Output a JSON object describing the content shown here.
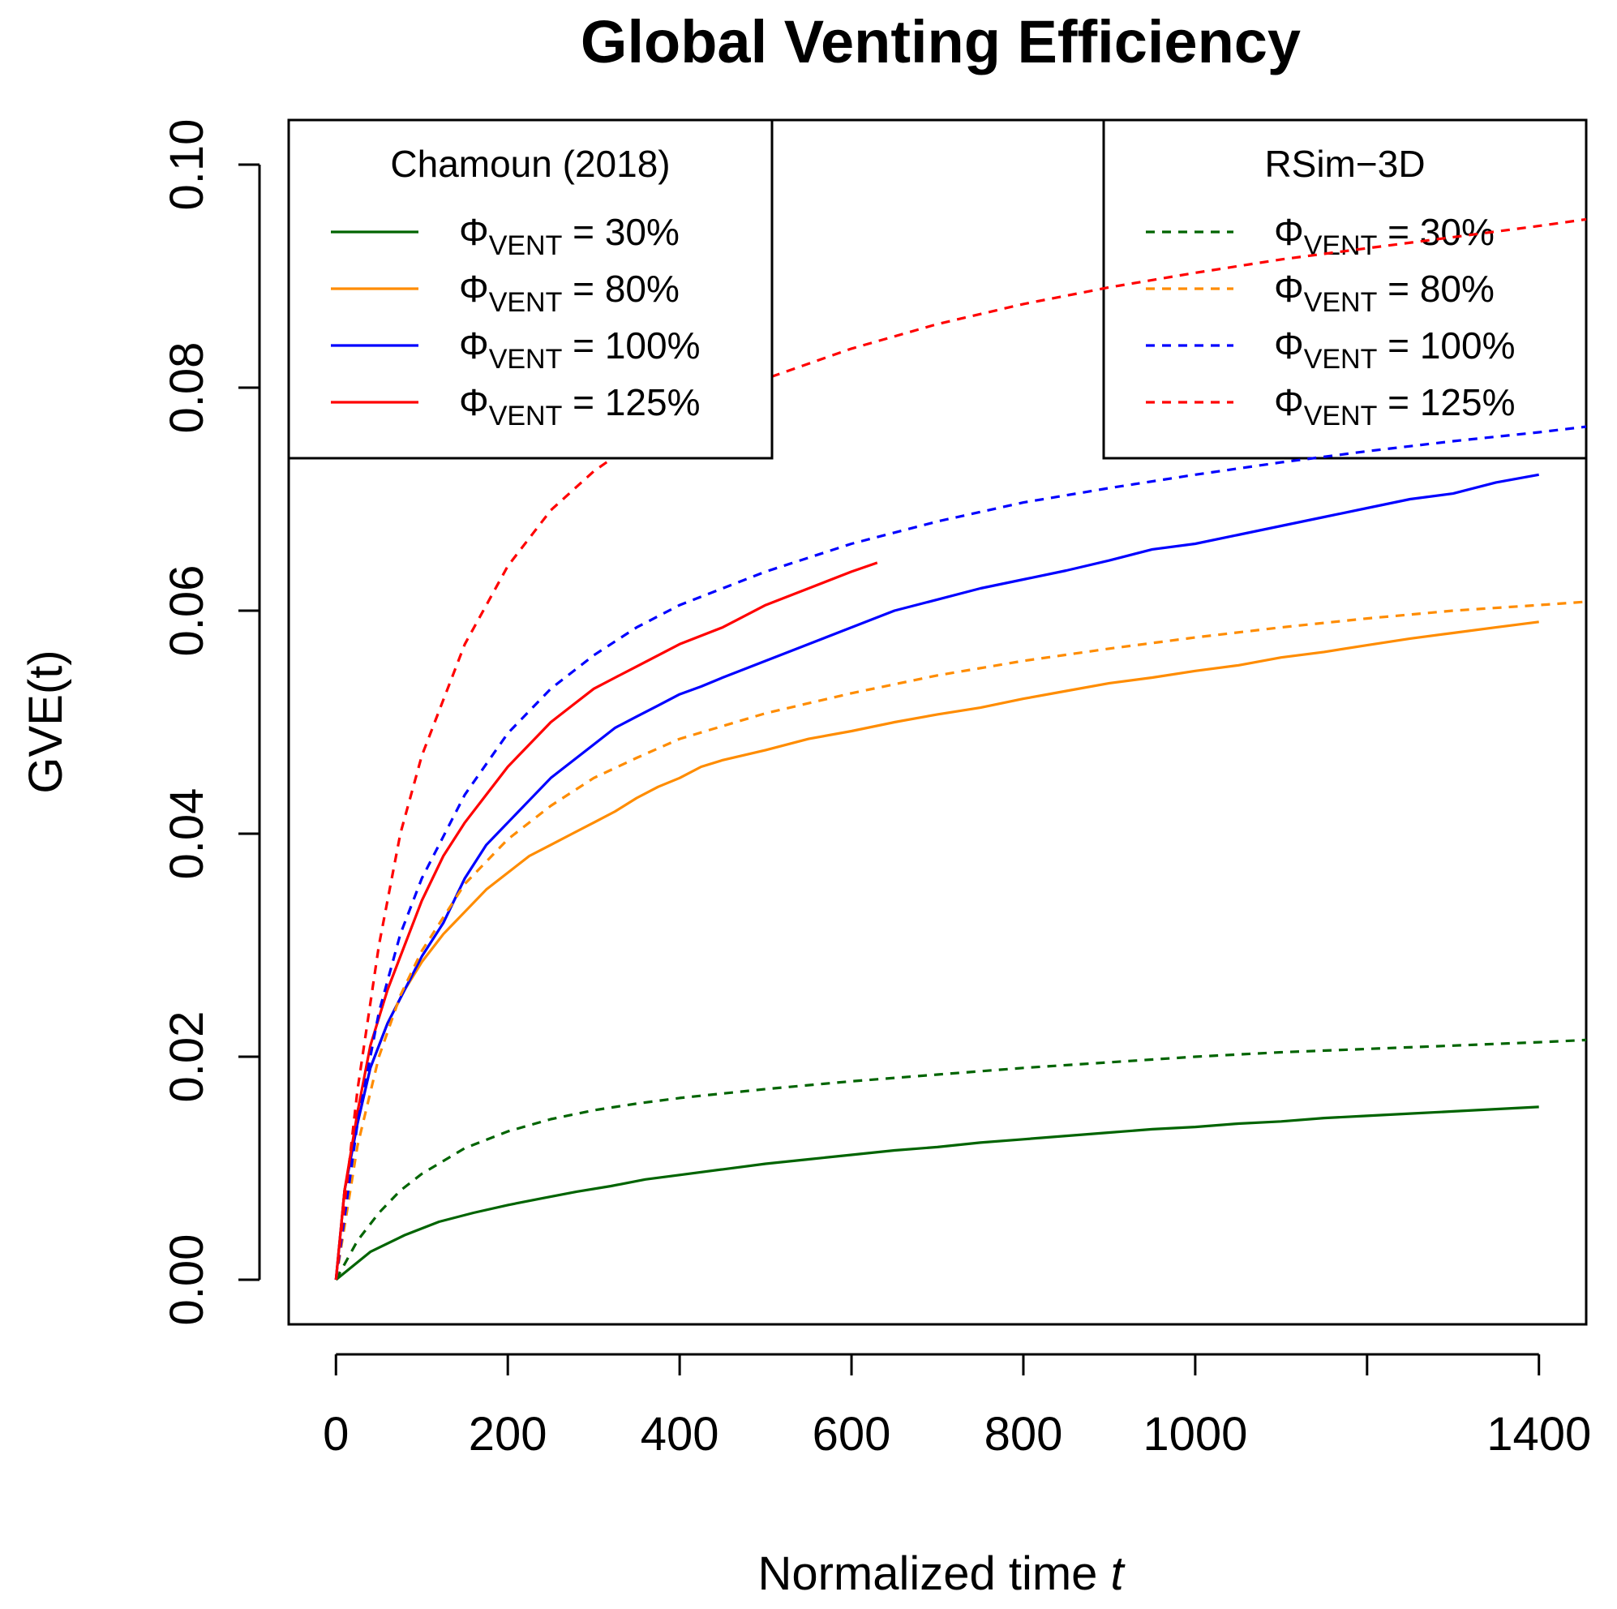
{
  "chart_data": {
    "type": "line",
    "title": "Global Venting Efficiency",
    "xlabel": "Normalized time",
    "xlabel_symbol": "t",
    "ylabel": "GVE(t)",
    "xlim": [
      -55,
      1455
    ],
    "ylim": [
      -0.004,
      0.104
    ],
    "xticks": [
      0,
      200,
      400,
      600,
      800,
      1000,
      1200,
      1400
    ],
    "xtick_labels": [
      "0",
      "200",
      "400",
      "600",
      "800",
      "1000",
      "",
      "1400"
    ],
    "yticks": [
      0.0,
      0.02,
      0.04,
      0.06,
      0.08,
      0.1
    ],
    "ytick_labels": [
      "0.00",
      "0.02",
      "0.04",
      "0.06",
      "0.08",
      "0.10"
    ],
    "legends": [
      {
        "title": "Chamoun (2018)",
        "position": "top-left",
        "entries": [
          {
            "symbol": "Φ",
            "sub": "VENT",
            "text": " = 30%",
            "color": "#006400",
            "dash": "solid"
          },
          {
            "symbol": "Φ",
            "sub": "VENT",
            "text": " = 80%",
            "color": "#ff8c00",
            "dash": "solid"
          },
          {
            "symbol": "Φ",
            "sub": "VENT",
            "text": " = 100%",
            "color": "#0000ff",
            "dash": "solid"
          },
          {
            "symbol": "Φ",
            "sub": "VENT",
            "text": " = 125%",
            "color": "#ff0000",
            "dash": "solid"
          }
        ]
      },
      {
        "title": "RSim−3D",
        "position": "top-right",
        "entries": [
          {
            "symbol": "Φ",
            "sub": "VENT",
            "text": " = 30%",
            "color": "#006400",
            "dash": "dashed"
          },
          {
            "symbol": "Φ",
            "sub": "VENT",
            "text": " = 80%",
            "color": "#ff8c00",
            "dash": "dashed"
          },
          {
            "symbol": "Φ",
            "sub": "VENT",
            "text": " = 100%",
            "color": "#0000ff",
            "dash": "dashed"
          },
          {
            "symbol": "Φ",
            "sub": "VENT",
            "text": " = 125%",
            "color": "#ff0000",
            "dash": "dashed"
          }
        ]
      }
    ],
    "series": [
      {
        "name": "Chamoun (2018) Φ_VENT = 30%",
        "color": "#006400",
        "dash": "solid",
        "x": [
          0,
          40,
          80,
          120,
          160,
          200,
          240,
          280,
          320,
          360,
          400,
          450,
          500,
          550,
          600,
          650,
          700,
          750,
          800,
          850,
          900,
          950,
          1000,
          1050,
          1100,
          1150,
          1200,
          1250,
          1300,
          1350,
          1400
        ],
        "y": [
          0,
          0.0025,
          0.004,
          0.0052,
          0.006,
          0.0067,
          0.0073,
          0.0079,
          0.0084,
          0.009,
          0.0094,
          0.0099,
          0.0104,
          0.0108,
          0.0112,
          0.0116,
          0.0119,
          0.0123,
          0.0126,
          0.0129,
          0.0132,
          0.0135,
          0.0137,
          0.014,
          0.0142,
          0.0145,
          0.0147,
          0.0149,
          0.0151,
          0.0153,
          0.0155
        ]
      },
      {
        "name": "Chamoun (2018) Φ_VENT = 80%",
        "color": "#ff8c00",
        "dash": "solid",
        "x": [
          0,
          10,
          25,
          40,
          60,
          80,
          100,
          125,
          150,
          175,
          200,
          225,
          250,
          275,
          300,
          325,
          350,
          375,
          400,
          425,
          450,
          500,
          550,
          600,
          650,
          700,
          750,
          800,
          850,
          900,
          950,
          1000,
          1050,
          1100,
          1150,
          1200,
          1250,
          1300,
          1350,
          1400
        ],
        "y": [
          0,
          0.008,
          0.014,
          0.019,
          0.023,
          0.026,
          0.0285,
          0.031,
          0.033,
          0.035,
          0.0365,
          0.038,
          0.039,
          0.04,
          0.041,
          0.042,
          0.0432,
          0.0442,
          0.045,
          0.046,
          0.0466,
          0.0475,
          0.0485,
          0.0492,
          0.05,
          0.0507,
          0.0513,
          0.0521,
          0.0528,
          0.0535,
          0.054,
          0.0546,
          0.0551,
          0.0558,
          0.0563,
          0.0569,
          0.0575,
          0.058,
          0.0585,
          0.059
        ]
      },
      {
        "name": "Chamoun (2018) Φ_VENT = 100%",
        "color": "#0000ff",
        "dash": "solid",
        "x": [
          0,
          10,
          25,
          40,
          60,
          80,
          100,
          125,
          150,
          175,
          200,
          225,
          250,
          275,
          300,
          325,
          350,
          375,
          400,
          425,
          450,
          500,
          550,
          600,
          650,
          700,
          750,
          800,
          850,
          900,
          950,
          1000,
          1050,
          1100,
          1150,
          1200,
          1250,
          1300,
          1350,
          1400
        ],
        "y": [
          0,
          0.008,
          0.014,
          0.019,
          0.023,
          0.026,
          0.029,
          0.032,
          0.036,
          0.039,
          0.041,
          0.043,
          0.045,
          0.0465,
          0.048,
          0.0495,
          0.0505,
          0.0515,
          0.0525,
          0.0532,
          0.054,
          0.0555,
          0.057,
          0.0585,
          0.06,
          0.061,
          0.062,
          0.0628,
          0.0636,
          0.0645,
          0.0655,
          0.066,
          0.0668,
          0.0676,
          0.0684,
          0.0692,
          0.07,
          0.0705,
          0.0715,
          0.0722
        ]
      },
      {
        "name": "Chamoun (2018) Φ_VENT = 125%",
        "color": "#ff0000",
        "dash": "solid",
        "x": [
          0,
          10,
          25,
          40,
          60,
          80,
          100,
          125,
          150,
          175,
          200,
          225,
          250,
          275,
          300,
          325,
          350,
          400,
          450,
          500,
          550,
          600,
          630
        ],
        "y": [
          0,
          0.008,
          0.015,
          0.021,
          0.026,
          0.03,
          0.034,
          0.038,
          0.041,
          0.0435,
          0.046,
          0.048,
          0.05,
          0.0515,
          0.053,
          0.054,
          0.055,
          0.057,
          0.0585,
          0.0605,
          0.062,
          0.0635,
          0.0643
        ]
      },
      {
        "name": "RSim-3D Φ_VENT = 30%",
        "color": "#006400",
        "dash": "dashed",
        "x": [
          0,
          25,
          50,
          75,
          100,
          150,
          200,
          250,
          300,
          350,
          400,
          500,
          600,
          700,
          800,
          900,
          1000,
          1100,
          1200,
          1300,
          1400,
          1455
        ],
        "y": [
          0,
          0.0035,
          0.006,
          0.008,
          0.0095,
          0.0118,
          0.0133,
          0.0144,
          0.0152,
          0.0158,
          0.0163,
          0.0171,
          0.0178,
          0.0184,
          0.019,
          0.0195,
          0.02,
          0.0204,
          0.0207,
          0.021,
          0.0213,
          0.0215
        ]
      },
      {
        "name": "RSim-3D Φ_VENT = 80%",
        "color": "#ff8c00",
        "dash": "dashed",
        "x": [
          0,
          25,
          50,
          75,
          100,
          150,
          200,
          250,
          300,
          350,
          400,
          500,
          600,
          700,
          800,
          900,
          1000,
          1100,
          1200,
          1300,
          1400,
          1455
        ],
        "y": [
          0,
          0.012,
          0.02,
          0.0255,
          0.0295,
          0.0355,
          0.0395,
          0.0425,
          0.045,
          0.0468,
          0.0485,
          0.0508,
          0.0526,
          0.0542,
          0.0555,
          0.0566,
          0.0576,
          0.0585,
          0.0593,
          0.06,
          0.0605,
          0.0608
        ]
      },
      {
        "name": "RSim-3D Φ_VENT = 100%",
        "color": "#0000ff",
        "dash": "dashed",
        "x": [
          0,
          25,
          50,
          75,
          100,
          150,
          200,
          250,
          300,
          350,
          400,
          500,
          600,
          700,
          800,
          900,
          1000,
          1100,
          1200,
          1300,
          1400,
          1455
        ],
        "y": [
          0,
          0.014,
          0.024,
          0.031,
          0.036,
          0.0435,
          0.049,
          0.053,
          0.056,
          0.0585,
          0.0605,
          0.0635,
          0.066,
          0.068,
          0.0697,
          0.071,
          0.0722,
          0.0733,
          0.0743,
          0.0752,
          0.076,
          0.0765
        ]
      },
      {
        "name": "RSim-3D Φ_VENT = 125%",
        "color": "#ff0000",
        "dash": "dashed",
        "x": [
          0,
          25,
          50,
          75,
          100,
          150,
          200,
          250,
          300,
          350,
          400,
          500,
          600,
          700,
          800,
          900,
          1000,
          1100,
          1200,
          1300,
          1400,
          1455
        ],
        "y": [
          0,
          0.017,
          0.03,
          0.04,
          0.047,
          0.057,
          0.064,
          0.069,
          0.0725,
          0.0752,
          0.0772,
          0.0808,
          0.0835,
          0.0857,
          0.0875,
          0.089,
          0.0903,
          0.0915,
          0.0925,
          0.0935,
          0.0945,
          0.0951
        ]
      }
    ]
  }
}
